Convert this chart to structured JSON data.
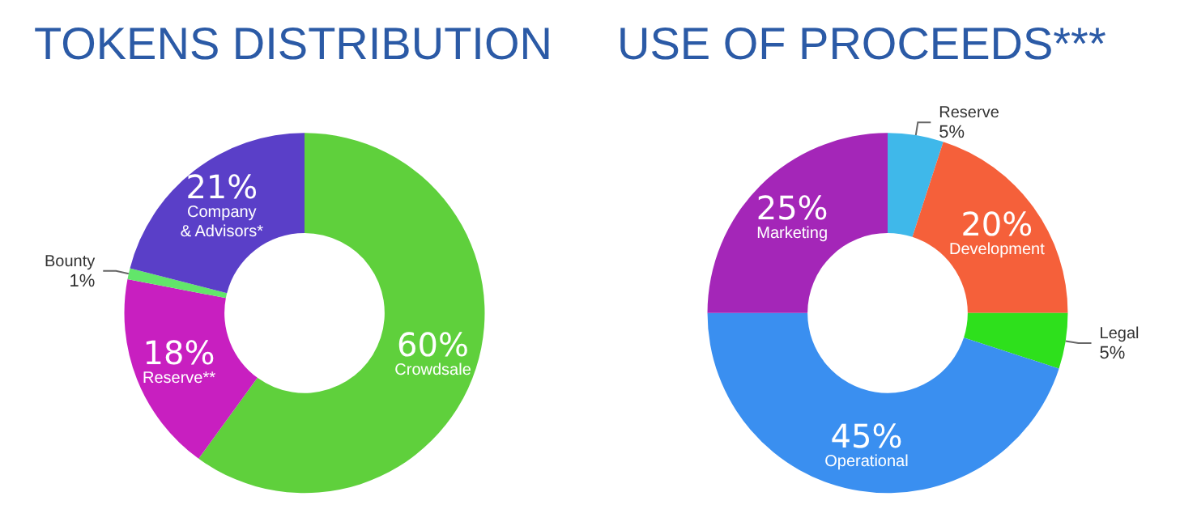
{
  "chart_data": [
    {
      "type": "donut",
      "title": "TOKENS DISTRIBUTION",
      "categories": [
        "Crowdsale",
        "Reserve**",
        "Bounty",
        "Company\n& Advisors*"
      ],
      "values": [
        60,
        18,
        1,
        21
      ],
      "value_labels": [
        "60%",
        "18%",
        "1%",
        "21%"
      ],
      "colors": [
        "#5fd03c",
        "#c81fc0",
        "#62e66a",
        "#5a3fc8"
      ],
      "legend": false
    },
    {
      "type": "donut",
      "title": "USE OF PROCEEDS***",
      "categories": [
        "Reserve",
        "Development",
        "Legal",
        "Operational",
        "Marketing"
      ],
      "values": [
        5,
        20,
        5,
        45,
        25
      ],
      "value_labels": [
        "5%",
        "20%",
        "5%",
        "45%",
        "25%"
      ],
      "colors": [
        "#3fb8ea",
        "#f5603a",
        "#2ee01c",
        "#3a8ff0",
        "#a426b8"
      ],
      "legend": false
    }
  ]
}
